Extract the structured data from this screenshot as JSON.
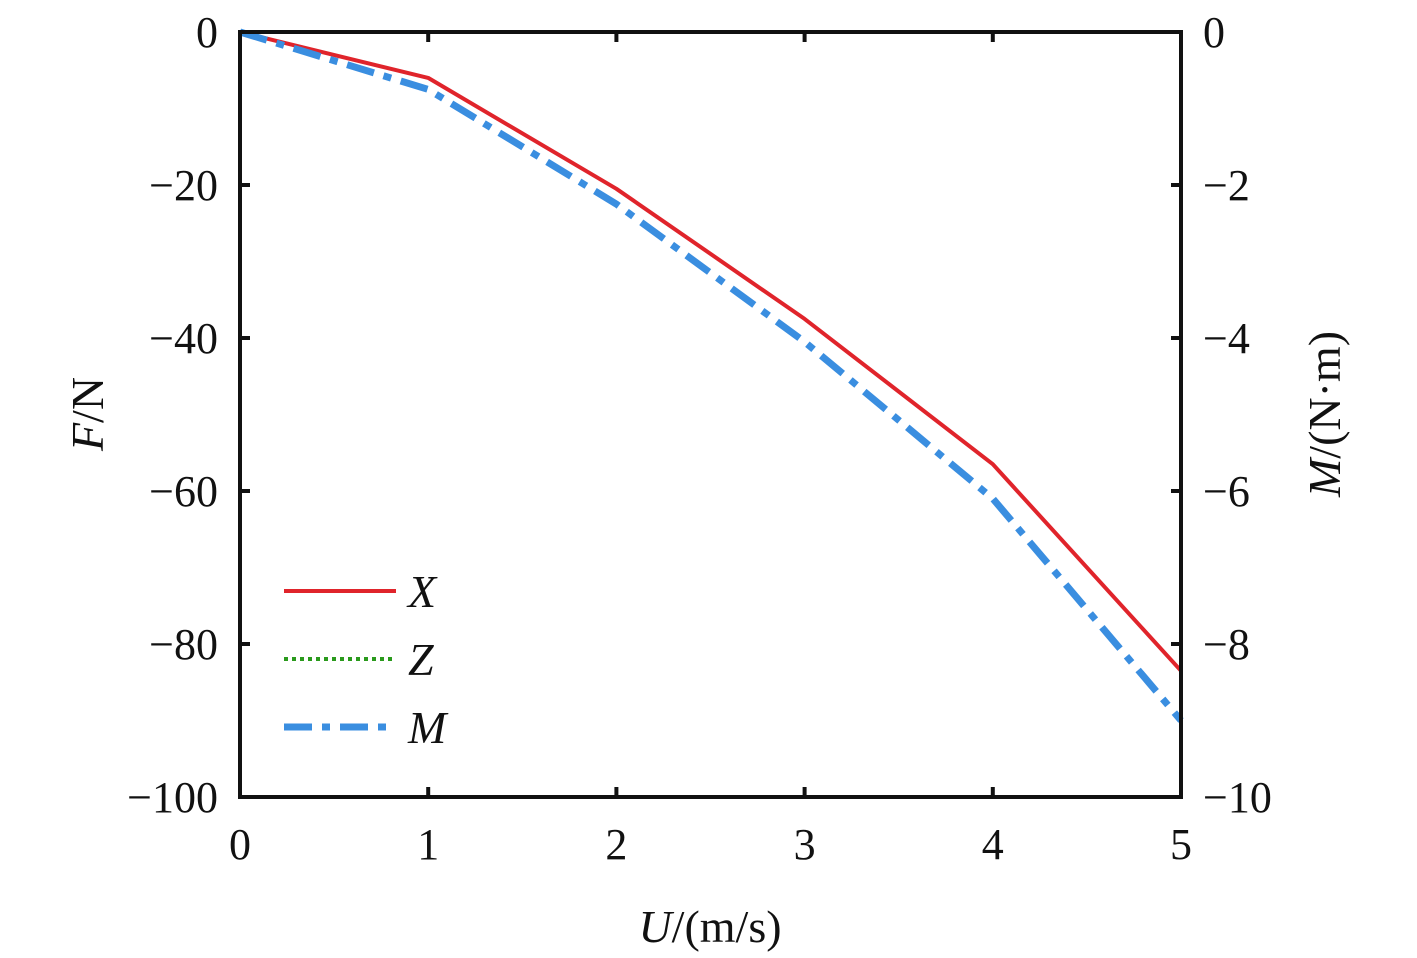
{
  "chart_data": {
    "type": "line",
    "x": [
      0,
      1,
      2,
      3,
      4,
      5
    ],
    "xlim": [
      0,
      5
    ],
    "ylim": [
      -100,
      0
    ],
    "y2lim": [
      -10,
      0
    ],
    "x_ticks": [
      "0",
      "1",
      "2",
      "3",
      "4",
      "5"
    ],
    "y_ticks": [
      "0",
      "−20",
      "−40",
      "−60",
      "−80",
      "−100"
    ],
    "y2_ticks": [
      "0",
      "−2",
      "−4",
      "−6",
      "−8",
      "−10"
    ],
    "xlabel": {
      "var": "U",
      "unit": "/(m/s)"
    },
    "ylabel": {
      "var": "F",
      "unit": "/N"
    },
    "y2label": {
      "var": "M",
      "unit": "/(N·m)"
    },
    "legend_position": "lower-left",
    "grid": false,
    "series": [
      {
        "name": "X",
        "axis": "left",
        "color": "#e0242b",
        "style": "solid",
        "values": [
          0,
          -6,
          -20.5,
          -37.5,
          -56.5,
          -83.5
        ]
      },
      {
        "name": "Z",
        "axis": "left",
        "color": "#2a9a1c",
        "style": "dotted",
        "values": [
          0,
          0,
          0,
          0,
          0,
          0
        ]
      },
      {
        "name": "M",
        "axis": "right",
        "color": "#3a8ee0",
        "style": "dashdot",
        "values": [
          0,
          -0.75,
          -2.25,
          -4.05,
          -6.1,
          -9.0
        ]
      }
    ]
  }
}
